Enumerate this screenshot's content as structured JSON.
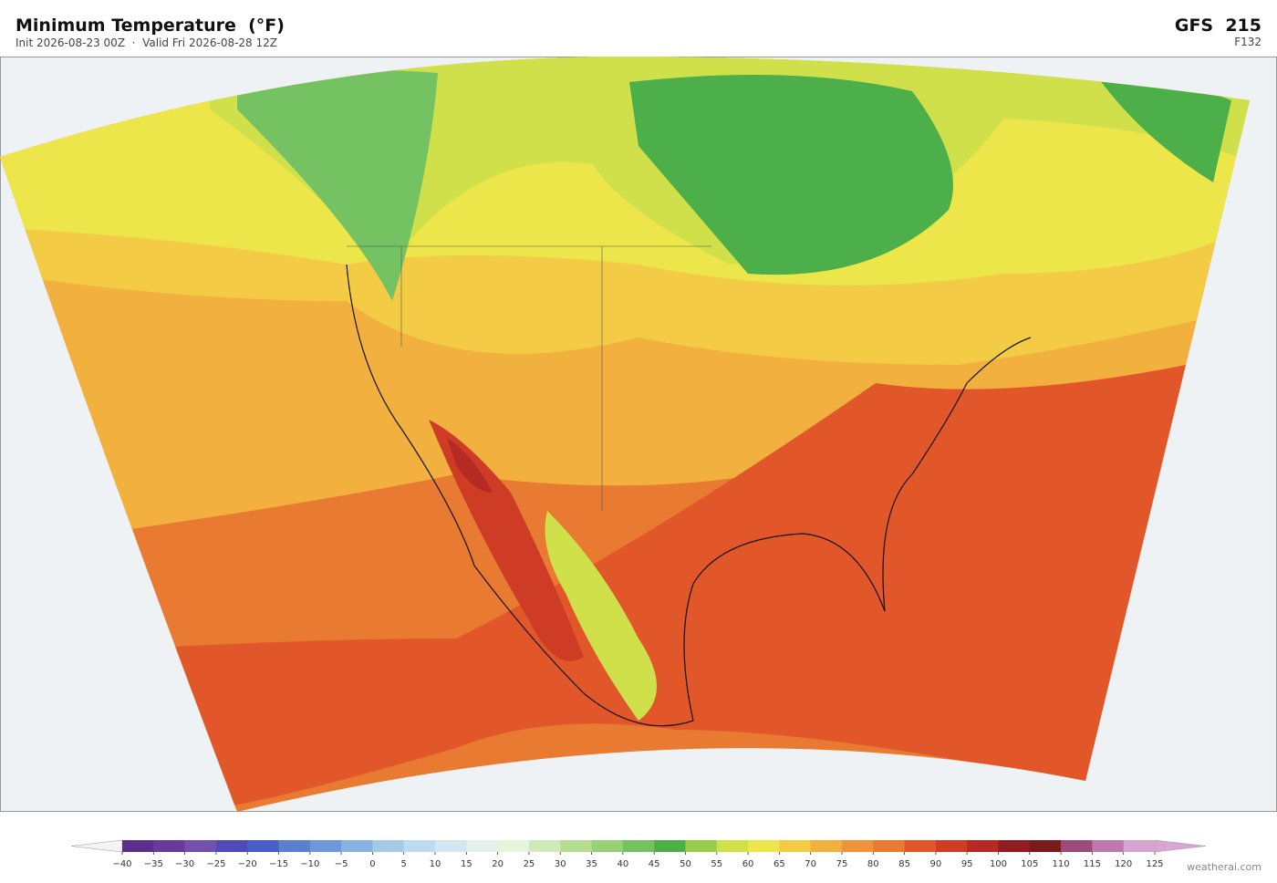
{
  "header": {
    "title": "Minimum Temperature  (°F)",
    "subtitle": "Init 2026-08-23 00Z  ·  Valid Fri 2026-08-28 12Z",
    "model": "GFS  215",
    "forecast_hour": "F132"
  },
  "colorbar": {
    "ticks": [
      {
        "value": -40,
        "label": "−40"
      },
      {
        "value": -35,
        "label": "−35"
      },
      {
        "value": -30,
        "label": "−30"
      },
      {
        "value": -25,
        "label": "−25"
      },
      {
        "value": -20,
        "label": "−20"
      },
      {
        "value": -15,
        "label": "−15"
      },
      {
        "value": -10,
        "label": "−10"
      },
      {
        "value": -5,
        "label": "−5"
      },
      0,
      5,
      10,
      15,
      20,
      25,
      30,
      35,
      40,
      45,
      50,
      55,
      60,
      65,
      70,
      75,
      80,
      85,
      90,
      95,
      100,
      105,
      110,
      115,
      120,
      125
    ],
    "colors": [
      "#5d2e8c",
      "#6a3a9a",
      "#7250ae",
      "#4e4bb8",
      "#4a5ec8",
      "#5b7fd1",
      "#6f98d8",
      "#87b3e0",
      "#a3cbe8",
      "#bcdcee",
      "#d1e8f0",
      "#e2f0ee",
      "#e6f4dc",
      "#cfe9b8",
      "#b3de94",
      "#96d177",
      "#74c262",
      "#4caf4a",
      "#9bcb4b",
      "#cfe04a",
      "#ede64a",
      "#f3cb45",
      "#f2b13e",
      "#ef933a",
      "#e97a32",
      "#e2572a",
      "#cf3c26",
      "#b52a22",
      "#921d1e",
      "#7a1a1c",
      "#9c4a7a",
      "#bf78ae",
      "#d7a3cf"
    ],
    "extend_low_color": "#f4f4f8",
    "extend_high_color": "#d9a5d3"
  },
  "footer": {
    "credit": "weatherai.com"
  }
}
